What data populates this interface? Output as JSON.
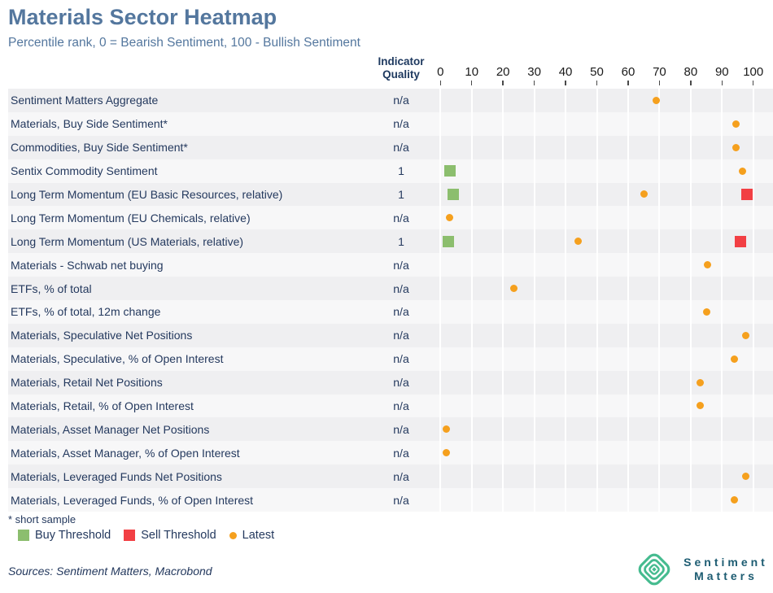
{
  "title": "Materials Sector Heatmap",
  "subtitle": "Percentile rank, 0 = Bearish Sentiment, 100 - Bullish Sentiment",
  "quality_header": {
    "line1": "Indicator",
    "line2": "Quality"
  },
  "footnote": "* short sample",
  "sources": "Sources: Sentiment Matters, Macrobond",
  "logo": {
    "line1": "Sentiment",
    "line2": "Matters",
    "icon": "concentric-diamond-icon"
  },
  "colors": {
    "title": "#54779E",
    "text_navy": "#24395E",
    "header_navy": "#1F3A60",
    "buy_green": "#8CBE6E",
    "sell_red": "#F23F44",
    "latest_orange": "#F5A01E",
    "row_dark": "#EFEFF1",
    "row_light": "#F7F7F8",
    "logo_green": "#45BB8F",
    "logo_text": "#1D5C72"
  },
  "legend": [
    {
      "label": "Buy Threshold",
      "shape": "square",
      "color": "#8CBE6E"
    },
    {
      "label": "Sell Threshold",
      "shape": "square",
      "color": "#F23F44"
    },
    {
      "label": "Latest",
      "shape": "dot",
      "color": "#F5A01E"
    }
  ],
  "chart_data": {
    "type": "heatmap",
    "title": "Materials Sector Heatmap",
    "xlabel": "Percentile rank",
    "xlim": [
      0,
      100
    ],
    "x_ticks": [
      0,
      10,
      20,
      30,
      40,
      50,
      60,
      70,
      80,
      90,
      100
    ],
    "grid": true,
    "legend_position": "bottom",
    "quality_column_header": "Indicator Quality",
    "rows": [
      {
        "label": "Sentiment Matters Aggregate",
        "quality": "n/a",
        "buy": null,
        "sell": null,
        "latest": 69
      },
      {
        "label": "Materials, Buy Side Sentiment*",
        "quality": "n/a",
        "buy": null,
        "sell": null,
        "latest": 94.5
      },
      {
        "label": "Commodities, Buy Side Sentiment*",
        "quality": "n/a",
        "buy": null,
        "sell": null,
        "latest": 94.5
      },
      {
        "label": "Sentix Commodity Sentiment",
        "quality": "1",
        "buy": 3,
        "sell": null,
        "latest": 96.5
      },
      {
        "label": "Long Term Momentum (EU Basic Resources, relative)",
        "quality": "1",
        "buy": 4,
        "sell": 98,
        "latest": 65
      },
      {
        "label": "Long Term Momentum (EU Chemicals, relative)",
        "quality": "n/a",
        "buy": null,
        "sell": null,
        "latest": 3
      },
      {
        "label": "Long Term Momentum (US Materials, relative)",
        "quality": "1",
        "buy": 2.5,
        "sell": 96,
        "latest": 44
      },
      {
        "label": "Materials - Schwab net buying",
        "quality": "n/a",
        "buy": null,
        "sell": null,
        "latest": 85.5
      },
      {
        "label": "ETFs, % of total",
        "quality": "n/a",
        "buy": null,
        "sell": null,
        "latest": 23.5
      },
      {
        "label": "ETFs, % of total, 12m change",
        "quality": "n/a",
        "buy": null,
        "sell": null,
        "latest": 85
      },
      {
        "label": "Materials, Speculative Net Positions",
        "quality": "n/a",
        "buy": null,
        "sell": null,
        "latest": 97.5
      },
      {
        "label": "Materials, Speculative, % of Open Interest",
        "quality": "n/a",
        "buy": null,
        "sell": null,
        "latest": 94
      },
      {
        "label": "Materials, Retail Net Positions",
        "quality": "n/a",
        "buy": null,
        "sell": null,
        "latest": 83
      },
      {
        "label": "Materials, Retail, % of Open Interest",
        "quality": "n/a",
        "buy": null,
        "sell": null,
        "latest": 83
      },
      {
        "label": "Materials, Asset Manager Net Positions",
        "quality": "n/a",
        "buy": null,
        "sell": null,
        "latest": 2
      },
      {
        "label": "Materials, Asset Manager, % of Open Interest",
        "quality": "n/a",
        "buy": null,
        "sell": null,
        "latest": 2
      },
      {
        "label": "Materials, Leveraged Funds Net Positions",
        "quality": "n/a",
        "buy": null,
        "sell": null,
        "latest": 97.5
      },
      {
        "label": "Materials, Leveraged Funds, % of Open Interest",
        "quality": "n/a",
        "buy": null,
        "sell": null,
        "latest": 94
      }
    ]
  }
}
